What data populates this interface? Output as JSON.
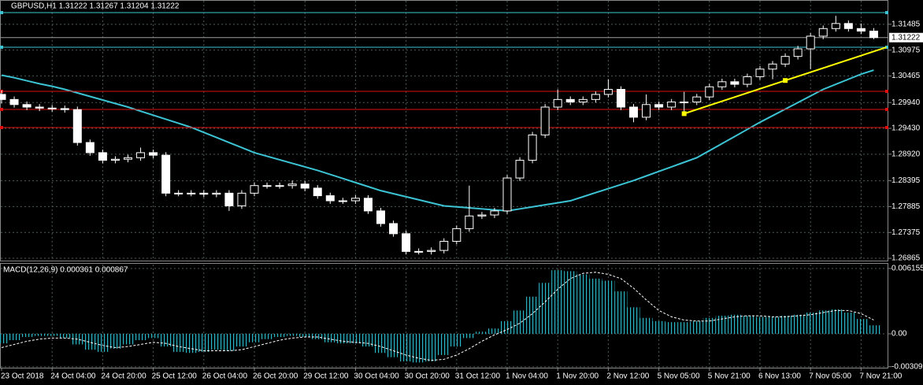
{
  "chart_data": {
    "type": "candlestick",
    "title": "GBPUSD,H1  1.31222 1.31267 1.31204 1.31222",
    "categories": [
      "23 Oct 2018",
      null,
      null,
      null,
      "24 Oct 04:00",
      null,
      null,
      null,
      "24 Oct 20:00",
      null,
      null,
      null,
      "25 Oct 12:00",
      null,
      null,
      null,
      "26 Oct 04:00",
      null,
      null,
      null,
      "26 Oct 20:00",
      null,
      null,
      null,
      "29 Oct 12:00",
      null,
      null,
      null,
      "30 Oct 04:00",
      null,
      null,
      null,
      "30 Oct 20:00",
      null,
      null,
      null,
      "31 Oct 12:00",
      null,
      null,
      null,
      "1 Nov 04:00",
      null,
      null,
      null,
      "1 Nov 20:00",
      null,
      null,
      null,
      "2 Nov 12:00",
      null,
      null,
      null,
      "5 Nov 05:00",
      null,
      null,
      null,
      "5 Nov 21:00",
      null,
      null,
      null,
      "6 Nov 13:00",
      null,
      null,
      null,
      "7 Nov 05:00",
      null,
      null,
      null,
      "7 Nov 21:00",
      null,
      null,
      null,
      null,
      null
    ],
    "ohlc": [
      [
        1.301,
        1.3018,
        1.2992,
        1.3
      ],
      [
        1.3,
        1.3006,
        1.2984,
        1.299
      ],
      [
        1.299,
        1.2996,
        1.2979,
        1.2985
      ],
      [
        1.2985,
        1.2991,
        1.2977,
        1.2983
      ],
      [
        1.2983,
        1.2989,
        1.2976,
        1.2982
      ],
      [
        1.2982,
        1.2988,
        1.2974,
        1.298
      ],
      [
        1.298,
        1.2986,
        1.2909,
        1.2915
      ],
      [
        1.2915,
        1.2921,
        1.2889,
        1.2895
      ],
      [
        1.2895,
        1.2901,
        1.2874,
        1.288
      ],
      [
        1.288,
        1.2888,
        1.2874,
        1.2882
      ],
      [
        1.2882,
        1.2891,
        1.2876,
        1.2885
      ],
      [
        1.2885,
        1.2905,
        1.2879,
        1.2895
      ],
      [
        1.2895,
        1.2901,
        1.2884,
        1.289
      ],
      [
        1.289,
        1.2896,
        1.2809,
        1.2815
      ],
      [
        1.2815,
        1.2821,
        1.2809,
        1.2815
      ],
      [
        1.2815,
        1.2821,
        1.2809,
        1.2815
      ],
      [
        1.2815,
        1.2821,
        1.2807,
        1.2813
      ],
      [
        1.2813,
        1.2821,
        1.2807,
        1.2815
      ],
      [
        1.2815,
        1.2821,
        1.278,
        1.279
      ],
      [
        1.279,
        1.2821,
        1.2784,
        1.2815
      ],
      [
        1.2815,
        1.2836,
        1.2809,
        1.283
      ],
      [
        1.283,
        1.2836,
        1.2824,
        1.283
      ],
      [
        1.283,
        1.2836,
        1.2824,
        1.283
      ],
      [
        1.283,
        1.284,
        1.2824,
        1.2833
      ],
      [
        1.2833,
        1.2839,
        1.2819,
        1.2825
      ],
      [
        1.2825,
        1.2831,
        1.2804,
        1.281
      ],
      [
        1.281,
        1.2816,
        1.2794,
        1.28
      ],
      [
        1.28,
        1.2806,
        1.2794,
        1.28
      ],
      [
        1.28,
        1.2811,
        1.2794,
        1.2805
      ],
      [
        1.2805,
        1.2811,
        1.2774,
        1.278
      ],
      [
        1.278,
        1.2786,
        1.2749,
        1.2755
      ],
      [
        1.2755,
        1.2761,
        1.2729,
        1.2735
      ],
      [
        1.2735,
        1.2741,
        1.2694,
        1.27
      ],
      [
        1.27,
        1.2706,
        1.2694,
        1.27
      ],
      [
        1.27,
        1.2708,
        1.2694,
        1.2702
      ],
      [
        1.2702,
        1.2726,
        1.2696,
        1.272
      ],
      [
        1.272,
        1.2751,
        1.2714,
        1.2745
      ],
      [
        1.2745,
        1.283,
        1.2739,
        1.277
      ],
      [
        1.277,
        1.2778,
        1.2764,
        1.2772
      ],
      [
        1.2772,
        1.2786,
        1.2766,
        1.278
      ],
      [
        1.278,
        1.2851,
        1.2774,
        1.2845
      ],
      [
        1.2845,
        1.2886,
        1.2839,
        1.288
      ],
      [
        1.288,
        1.2936,
        1.2874,
        1.293
      ],
      [
        1.293,
        1.2991,
        1.2924,
        1.2985
      ],
      [
        1.2985,
        1.302,
        1.2979,
        1.3
      ],
      [
        1.3,
        1.3006,
        1.2989,
        1.2995
      ],
      [
        1.2995,
        1.3006,
        1.2989,
        1.3
      ],
      [
        1.3,
        1.3016,
        1.2994,
        1.301
      ],
      [
        1.301,
        1.304,
        1.3004,
        1.302
      ],
      [
        1.302,
        1.3026,
        1.2979,
        1.2985
      ],
      [
        1.2985,
        1.2991,
        1.2955,
        1.2965
      ],
      [
        1.2965,
        1.301,
        1.2959,
        1.299
      ],
      [
        1.299,
        1.2996,
        1.2979,
        1.2985
      ],
      [
        1.2985,
        1.3001,
        1.2979,
        1.2995
      ],
      [
        1.2995,
        1.3015,
        1.297,
        1.2995
      ],
      [
        1.2995,
        1.3011,
        1.2989,
        1.3005
      ],
      [
        1.3005,
        1.3031,
        1.2999,
        1.3025
      ],
      [
        1.3025,
        1.3041,
        1.3019,
        1.3035
      ],
      [
        1.3035,
        1.3041,
        1.3024,
        1.303
      ],
      [
        1.303,
        1.3051,
        1.3024,
        1.3045
      ],
      [
        1.3045,
        1.3066,
        1.3039,
        1.306
      ],
      [
        1.306,
        1.3076,
        1.304,
        1.307
      ],
      [
        1.307,
        1.3091,
        1.3064,
        1.3085
      ],
      [
        1.3085,
        1.3106,
        1.3079,
        1.31
      ],
      [
        1.31,
        1.3131,
        1.306,
        1.3125
      ],
      [
        1.3125,
        1.3146,
        1.3119,
        1.314
      ],
      [
        1.314,
        1.3165,
        1.3134,
        1.315
      ],
      [
        1.315,
        1.3156,
        1.3134,
        1.314
      ],
      [
        1.314,
        1.315,
        1.3129,
        1.3135
      ],
      [
        1.3135,
        1.3141,
        1.3119,
        1.31222
      ]
    ],
    "ma": {
      "color": "#3cc4d4",
      "values": [
        1.3048,
        1.3043,
        1.3037,
        1.3031,
        1.3026,
        1.302,
        1.3013,
        1.3006,
        1.2999,
        1.2992,
        1.2985,
        1.2977,
        1.2969,
        1.2961,
        1.2953,
        1.2945,
        1.2935,
        1.2925,
        1.2915,
        1.2905,
        1.2895,
        1.2888,
        1.2881,
        1.2874,
        1.2867,
        1.286,
        1.2852,
        1.2844,
        1.2836,
        1.2828,
        1.282,
        1.2814,
        1.2808,
        1.2802,
        1.2796,
        1.279,
        1.2788,
        1.2786,
        1.2784,
        1.2782,
        1.278,
        1.2784,
        1.2788,
        1.2792,
        1.2796,
        1.28,
        1.2808,
        1.2816,
        1.2824,
        1.2832,
        1.284,
        1.2849,
        1.2858,
        1.2867,
        1.2876,
        1.2885,
        1.2899,
        1.2913,
        1.2927,
        1.2941,
        1.2955,
        1.2968,
        1.2981,
        1.2994,
        1.3007,
        1.302,
        1.303,
        1.304,
        1.305,
        1.3058
      ]
    },
    "levels": [
      {
        "value": 1.31715,
        "color": "#3cc4d4"
      },
      {
        "value": 1.31032,
        "color": "#3cc4d4"
      },
      {
        "value": 1.30161,
        "color": "#e01010"
      },
      {
        "value": 1.29804,
        "color": "#e01010"
      },
      {
        "value": 1.29446,
        "color": "#e01010"
      }
    ],
    "trendline": {
      "color": "#ffff00",
      "start": [
        54,
        1.2972
      ],
      "end": [
        70,
        1.3103
      ]
    },
    "current_price": 1.31222,
    "ylim": [
      1.26819,
      1.31964
    ],
    "yticks": [
      1.31485,
      1.30975,
      1.30465,
      {
        "value": 1.2994,
        "label": "1.29940"
      },
      {
        "value": 1.2943,
        "label": "1.29430"
      },
      {
        "value": 1.2892,
        "label": "1.28920"
      },
      1.28395,
      1.27885,
      1.27375,
      1.26865
    ],
    "grid": true,
    "macd": {
      "label": "MACD(12,26,9) 0.000361 0.000867",
      "histogram_color": "#2ab8c8",
      "histogram": [
        -0.0009,
        -0.0006,
        -0.0003,
        -0.0002,
        -0.0002,
        -0.0004,
        -0.001,
        -0.0015,
        -0.0017,
        -0.0014,
        -0.001,
        -0.0006,
        -0.0004,
        -0.0012,
        -0.0017,
        -0.0018,
        -0.0017,
        -0.0015,
        -0.0016,
        -0.0012,
        -0.0008,
        -0.0005,
        -0.0003,
        -0.0002,
        -0.0003,
        -0.0005,
        -0.0008,
        -0.0009,
        -0.0009,
        -0.0012,
        -0.0018,
        -0.0022,
        -0.0026,
        -0.0027,
        -0.0026,
        -0.002,
        -0.0012,
        -0.0004,
        0.0002,
        0.0005,
        0.0012,
        0.0022,
        0.0035,
        0.0048,
        0.006,
        0.0059,
        0.0056,
        0.0052,
        0.005,
        0.004,
        0.0025,
        0.0015,
        0.0012,
        0.0011,
        0.0011,
        0.0012,
        0.0015,
        0.0017,
        0.0018,
        0.0017,
        0.0016,
        0.0016,
        0.0017,
        0.0018,
        0.002,
        0.0022,
        0.0023,
        0.002,
        0.0014,
        0.0008
      ],
      "signal": [
        -0.0013,
        -0.001,
        -0.0007,
        -0.0005,
        -0.0004,
        -0.0004,
        -0.0005,
        -0.0008,
        -0.0011,
        -0.0013,
        -0.0012,
        -0.001,
        -0.0008,
        -0.0009,
        -0.0012,
        -0.0014,
        -0.0016,
        -0.0016,
        -0.0016,
        -0.0015,
        -0.0012,
        -0.0009,
        -0.0006,
        -0.0004,
        -0.0003,
        -0.0003,
        -0.0005,
        -0.0007,
        -0.0008,
        -0.0009,
        -0.0012,
        -0.0016,
        -0.002,
        -0.0023,
        -0.0025,
        -0.0024,
        -0.002,
        -0.0014,
        -0.0007,
        -0.0001,
        0.0004,
        0.001,
        0.0019,
        0.003,
        0.0042,
        0.0052,
        0.0057,
        0.0058,
        0.0056,
        0.0052,
        0.0043,
        0.0032,
        0.0022,
        0.0016,
        0.0013,
        0.0012,
        0.0012,
        0.0014,
        0.0016,
        0.0017,
        0.0017,
        0.0016,
        0.0016,
        0.0017,
        0.0018,
        0.002,
        0.0022,
        0.0022,
        0.0019,
        0.0013
      ],
      "ylim": [
        -0.00319,
        0.0066
      ],
      "yticks": [
        0.006155,
        {
          "value": 0,
          "label": "0.00"
        },
        -0.003096
      ]
    }
  }
}
